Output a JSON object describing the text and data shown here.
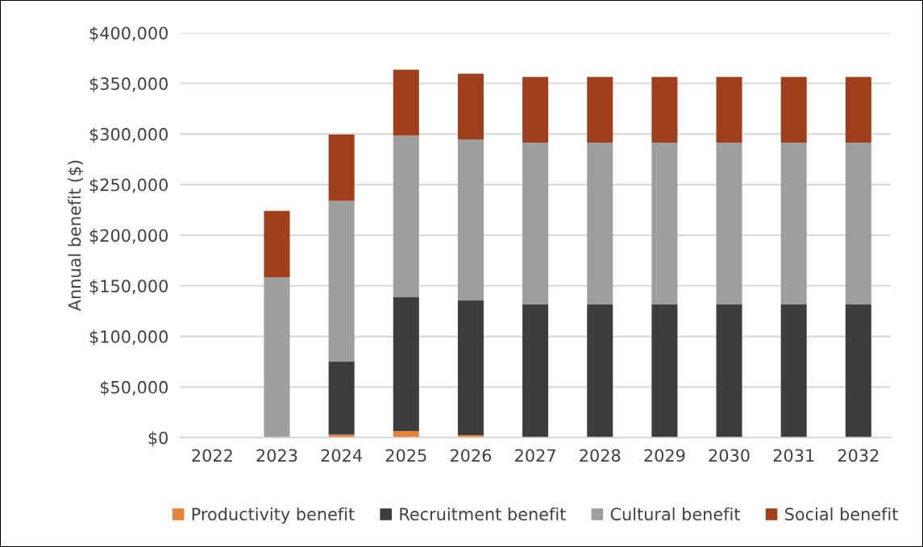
{
  "chart_data": {
    "type": "bar",
    "stacked": true,
    "ylabel": "Annual benefit ($)",
    "categories": [
      "2022",
      "2023",
      "2024",
      "2025",
      "2026",
      "2027",
      "2028",
      "2029",
      "2030",
      "2031",
      "2032"
    ],
    "series": [
      {
        "name": "Productivity benefit",
        "color": "#e6823c",
        "values": [
          0,
          0,
          3000,
          6500,
          2500,
          0,
          0,
          0,
          0,
          0,
          0
        ]
      },
      {
        "name": "Recruitment benefit",
        "color": "#3d3d3d",
        "values": [
          0,
          0,
          72000,
          132500,
          133000,
          132000,
          132000,
          132000,
          132000,
          132000,
          132000
        ]
      },
      {
        "name": "Cultural benefit",
        "color": "#9e9e9e",
        "values": [
          0,
          158500,
          159000,
          159500,
          159000,
          159500,
          159500,
          159500,
          159500,
          159500,
          159500
        ]
      },
      {
        "name": "Social benefit",
        "color": "#9e401e",
        "values": [
          0,
          65500,
          65500,
          65000,
          65000,
          65000,
          65000,
          65000,
          65000,
          65000,
          65000
        ]
      }
    ],
    "ylim": [
      0,
      400000
    ],
    "yticks": [
      {
        "value": 0,
        "label": "$0"
      },
      {
        "value": 50000,
        "label": "$50,000"
      },
      {
        "value": 100000,
        "label": "$100,000"
      },
      {
        "value": 150000,
        "label": "$150,000"
      },
      {
        "value": 200000,
        "label": "$200,000"
      },
      {
        "value": 250000,
        "label": "$250,000"
      },
      {
        "value": 300000,
        "label": "$300,000"
      },
      {
        "value": 350000,
        "label": "$350,000"
      },
      {
        "value": 400000,
        "label": "$400,000"
      }
    ],
    "grid": "y",
    "legend": "bottom"
  }
}
